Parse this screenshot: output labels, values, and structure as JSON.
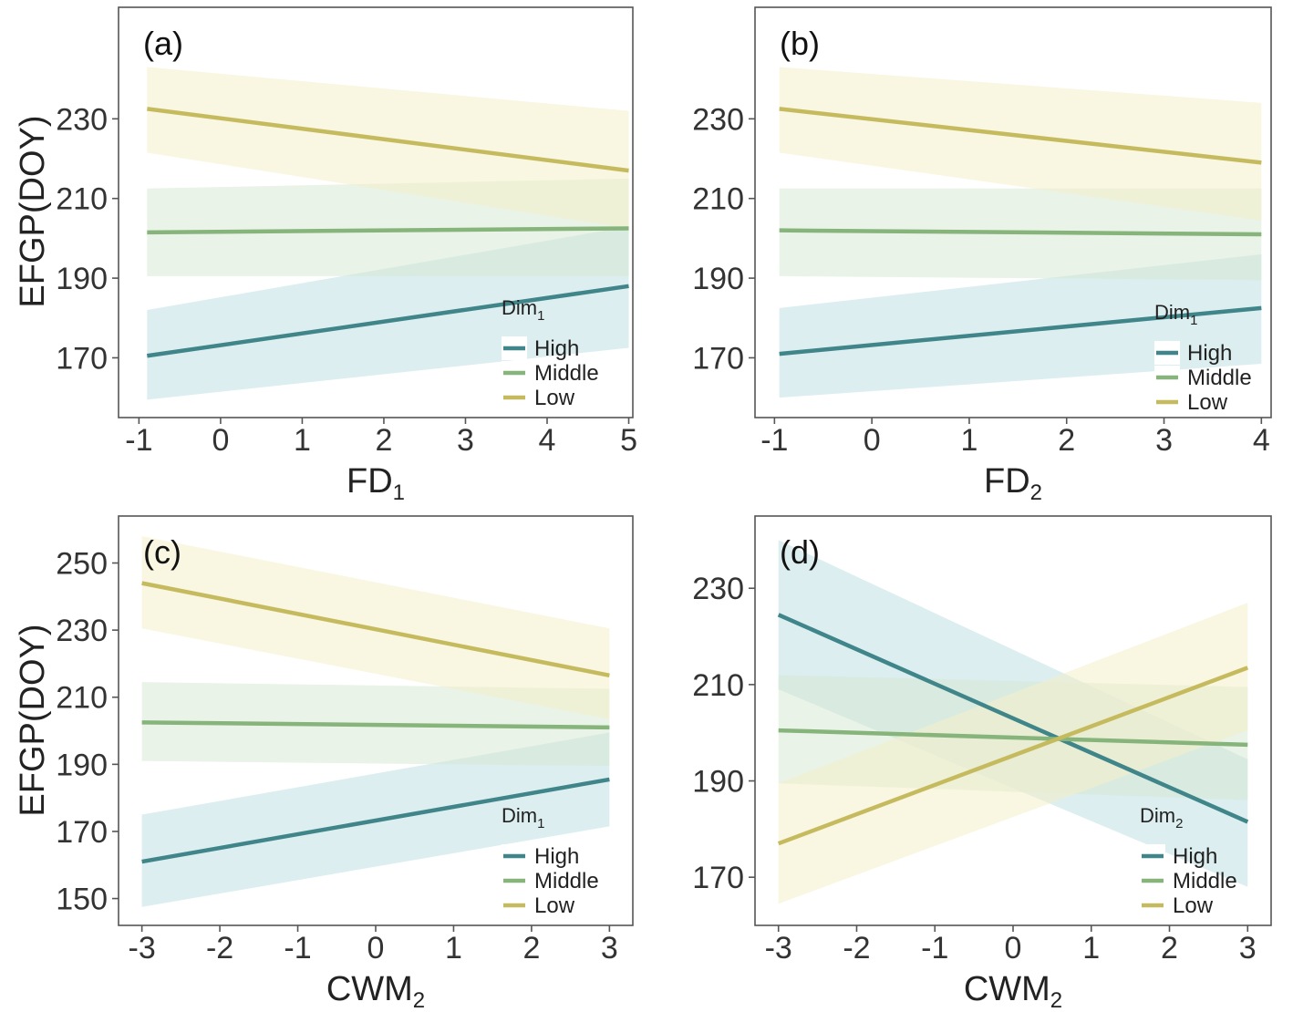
{
  "figure": {
    "y_axis_label": "EFGP(DOY)"
  },
  "chart_data": [
    {
      "panel": "(a)",
      "type": "line",
      "xlabel": "FD",
      "xlabel_sub": "1",
      "ylabel": "EFGP(DOY)",
      "xlim": [
        -1.25,
        5.05
      ],
      "ylim": [
        155,
        258
      ],
      "xticks": [
        -1,
        0,
        1,
        2,
        3,
        4,
        5
      ],
      "yticks": [
        170,
        190,
        210,
        230
      ],
      "legend": {
        "title": "Dim",
        "title_sub": "1",
        "position": "bottom-right",
        "items": [
          "High",
          "Middle",
          "Low"
        ]
      },
      "series": [
        {
          "name": "High",
          "color": "#3f8589",
          "band_color": "#bfe0e2",
          "x": [
            -0.9,
            5
          ],
          "y": [
            170.5,
            188
          ],
          "lower": [
            159.5,
            172.5
          ],
          "upper": [
            182,
            203
          ]
        },
        {
          "name": "Middle",
          "color": "#86b47a",
          "band_color": "#d7ead3",
          "x": [
            -0.9,
            5
          ],
          "y": [
            201.5,
            202.5
          ],
          "lower": [
            190.5,
            190.5
          ],
          "upper": [
            212.5,
            215
          ]
        },
        {
          "name": "Low",
          "color": "#c5bb5e",
          "band_color": "#f4efcb",
          "x": [
            -0.9,
            5
          ],
          "y": [
            232.5,
            217
          ],
          "lower": [
            221.5,
            202.5
          ],
          "upper": [
            243,
            232
          ]
        }
      ]
    },
    {
      "panel": "(b)",
      "type": "line",
      "xlabel": "FD",
      "xlabel_sub": "2",
      "ylabel": "",
      "xlim": [
        -1.2,
        4.1
      ],
      "ylim": [
        155,
        258
      ],
      "xticks": [
        -1,
        0,
        1,
        2,
        3,
        4
      ],
      "yticks": [
        170,
        190,
        210,
        230
      ],
      "legend": {
        "title": "Dim",
        "title_sub": "1",
        "position": "bottom-right",
        "items": [
          "High",
          "Middle",
          "Low"
        ]
      },
      "series": [
        {
          "name": "High",
          "color": "#3f8589",
          "band_color": "#bfe0e2",
          "x": [
            -0.95,
            4
          ],
          "y": [
            171,
            182.5
          ],
          "lower": [
            160,
            168.5
          ],
          "upper": [
            182.5,
            196
          ]
        },
        {
          "name": "Middle",
          "color": "#86b47a",
          "band_color": "#d7ead3",
          "x": [
            -0.95,
            4
          ],
          "y": [
            202,
            201
          ],
          "lower": [
            190.5,
            189.5
          ],
          "upper": [
            212.5,
            212.5
          ]
        },
        {
          "name": "Low",
          "color": "#c5bb5e",
          "band_color": "#f4efcb",
          "x": [
            -0.95,
            4
          ],
          "y": [
            232.5,
            219
          ],
          "lower": [
            221.5,
            204.5
          ],
          "upper": [
            243,
            234
          ]
        }
      ]
    },
    {
      "panel": "(c)",
      "type": "line",
      "xlabel": "CWM",
      "xlabel_sub": "2",
      "ylabel": "EFGP(DOY)",
      "xlim": [
        -3.3,
        3.3
      ],
      "ylim": [
        142,
        264
      ],
      "xticks": [
        -3,
        -2,
        -1,
        0,
        1,
        2,
        3
      ],
      "yticks": [
        150,
        170,
        190,
        210,
        230,
        250
      ],
      "legend": {
        "title": "Dim",
        "title_sub": "1",
        "position": "bottom-right",
        "items": [
          "High",
          "Middle",
          "Low"
        ]
      },
      "series": [
        {
          "name": "High",
          "color": "#3f8589",
          "band_color": "#bfe0e2",
          "x": [
            -3,
            3
          ],
          "y": [
            161,
            185.5
          ],
          "lower": [
            147.5,
            171.5
          ],
          "upper": [
            175,
            199.5
          ]
        },
        {
          "name": "Middle",
          "color": "#86b47a",
          "band_color": "#d7ead3",
          "x": [
            -3,
            3
          ],
          "y": [
            202.5,
            201
          ],
          "lower": [
            191,
            189.5
          ],
          "upper": [
            214.5,
            212.5
          ]
        },
        {
          "name": "Low",
          "color": "#c5bb5e",
          "band_color": "#f4efcb",
          "x": [
            -3,
            3
          ],
          "y": [
            244,
            216.5
          ],
          "lower": [
            230.5,
            203.5
          ],
          "upper": [
            258,
            230.5
          ]
        }
      ]
    },
    {
      "panel": "(d)",
      "type": "line",
      "xlabel": "CWM",
      "xlabel_sub": "2",
      "ylabel": "",
      "xlim": [
        -3.3,
        3.3
      ],
      "ylim": [
        160,
        245
      ],
      "xticks": [
        -3,
        -2,
        -1,
        0,
        1,
        2,
        3
      ],
      "yticks": [
        170,
        190,
        210,
        230
      ],
      "legend": {
        "title": "Dim",
        "title_sub": "2",
        "position": "bottom-right",
        "items": [
          "High",
          "Middle",
          "Low"
        ]
      },
      "series": [
        {
          "name": "High",
          "color": "#3f8589",
          "band_color": "#bfe0e2",
          "x": [
            -3,
            3
          ],
          "y": [
            224.5,
            181.5
          ],
          "lower": [
            209,
            168
          ],
          "upper": [
            240,
            194.5
          ]
        },
        {
          "name": "Middle",
          "color": "#86b47a",
          "band_color": "#d7ead3",
          "x": [
            -3,
            3
          ],
          "y": [
            200.5,
            197.5
          ],
          "lower": [
            189.5,
            186
          ],
          "upper": [
            212,
            209.5
          ]
        },
        {
          "name": "Low",
          "color": "#c5bb5e",
          "band_color": "#f4efcb",
          "x": [
            -3,
            3
          ],
          "y": [
            177,
            213.5
          ],
          "lower": [
            164.5,
            200.5
          ],
          "upper": [
            189.5,
            227
          ]
        }
      ]
    }
  ]
}
